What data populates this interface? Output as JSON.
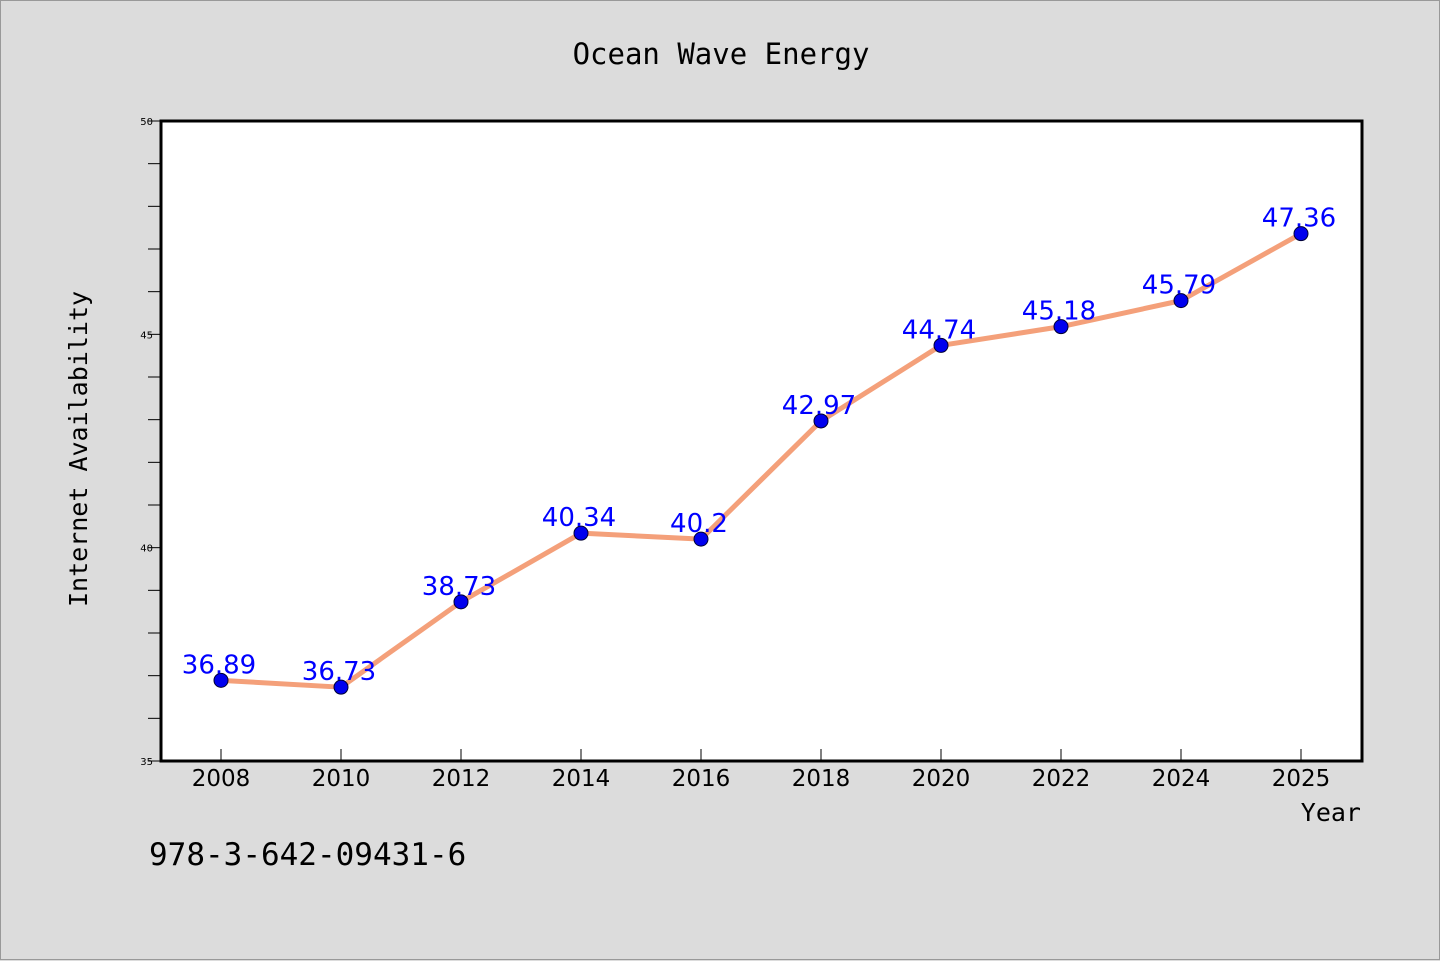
{
  "chart_data": {
    "type": "line",
    "title": "Ocean Wave Energy",
    "xlabel": "Year",
    "ylabel": "Internet Availability",
    "categories": [
      "2008",
      "2010",
      "2012",
      "2014",
      "2016",
      "2018",
      "2020",
      "2022",
      "2024",
      "2025"
    ],
    "series": [
      {
        "values": [
          36.89,
          36.73,
          38.73,
          40.34,
          40.2,
          42.97,
          44.74,
          45.18,
          45.79,
          47.36
        ],
        "data_labels": [
          "36.89",
          "36.73",
          "38.73",
          "40.34",
          "40.2",
          "42.97",
          "44.74",
          "45.18",
          "45.79",
          "47.36"
        ],
        "line_color": "#f4a07a",
        "marker_color": "#0000ee",
        "label_color": "#0000ff"
      }
    ],
    "ylim": [
      35,
      50
    ],
    "y_ticks": [
      "35",
      "40",
      "45",
      "50"
    ],
    "grid": false,
    "legend": "none"
  },
  "footer": {
    "code": "978-3-642-09431-6"
  },
  "colors": {
    "background": "#dcdcdc",
    "plot_background": "#ffffff",
    "axis": "#000000"
  }
}
